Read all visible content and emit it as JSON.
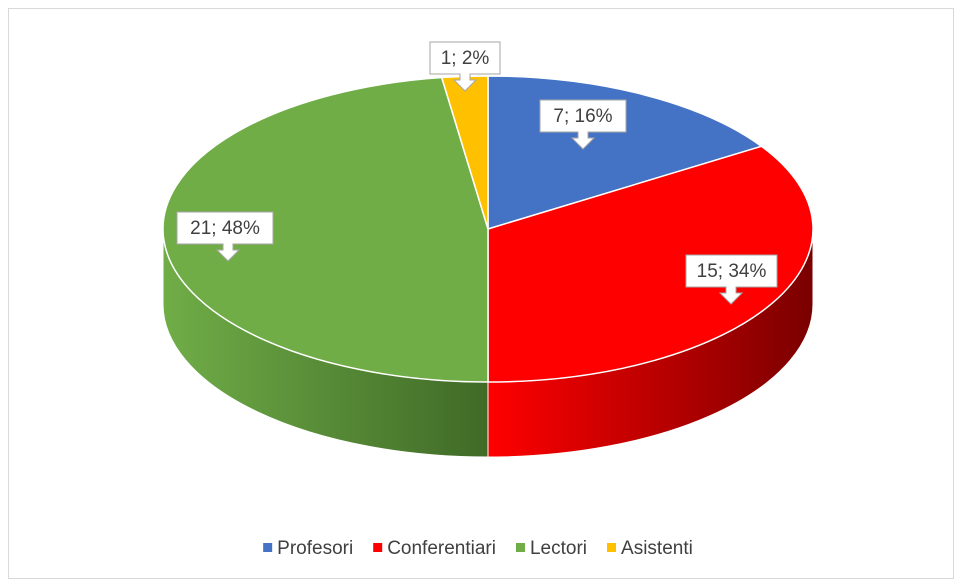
{
  "chart_data": {
    "type": "pie",
    "categories": [
      "Profesori",
      "Conferentiari",
      "Lectori",
      "Asistenti"
    ],
    "values": [
      7,
      15,
      21,
      1
    ],
    "value_labels": [
      "7; 16%",
      "15; 34%",
      "21; 48%",
      "1; 2%"
    ],
    "colors": [
      "#4472c4",
      "#ff0000",
      "#70ad47",
      "#ffc000"
    ],
    "side_colors": [
      "#23417a",
      "#7a0000",
      "#3f6a27",
      "#9a7300"
    ],
    "legend": "bottom"
  }
}
